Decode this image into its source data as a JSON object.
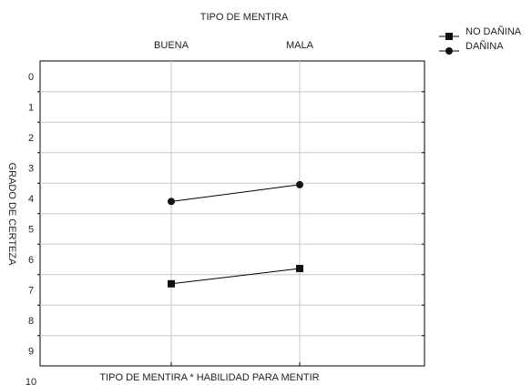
{
  "chart_data": {
    "type": "line",
    "title": "TIPO DE MENTIRA",
    "xlabel": "TIPO DE MENTIRA  * HABILIDAD PARA MENTIR",
    "ylabel": "GRADO DE CERTEZA",
    "categories": [
      "BUENA",
      "MALA"
    ],
    "ylim": [
      0,
      10
    ],
    "y_inverted": true,
    "yticks": [
      "0",
      "1",
      "2",
      "3",
      "4",
      "5",
      "6",
      "7",
      "8",
      "9",
      "10"
    ],
    "grid": true,
    "legend_position": "top-right",
    "series": [
      {
        "name": "NO DAÑINA",
        "marker": "square",
        "values": [
          6.8,
          6.3
        ]
      },
      {
        "name": "DAÑINA",
        "marker": "circle",
        "values": [
          4.1,
          3.55
        ]
      }
    ]
  }
}
